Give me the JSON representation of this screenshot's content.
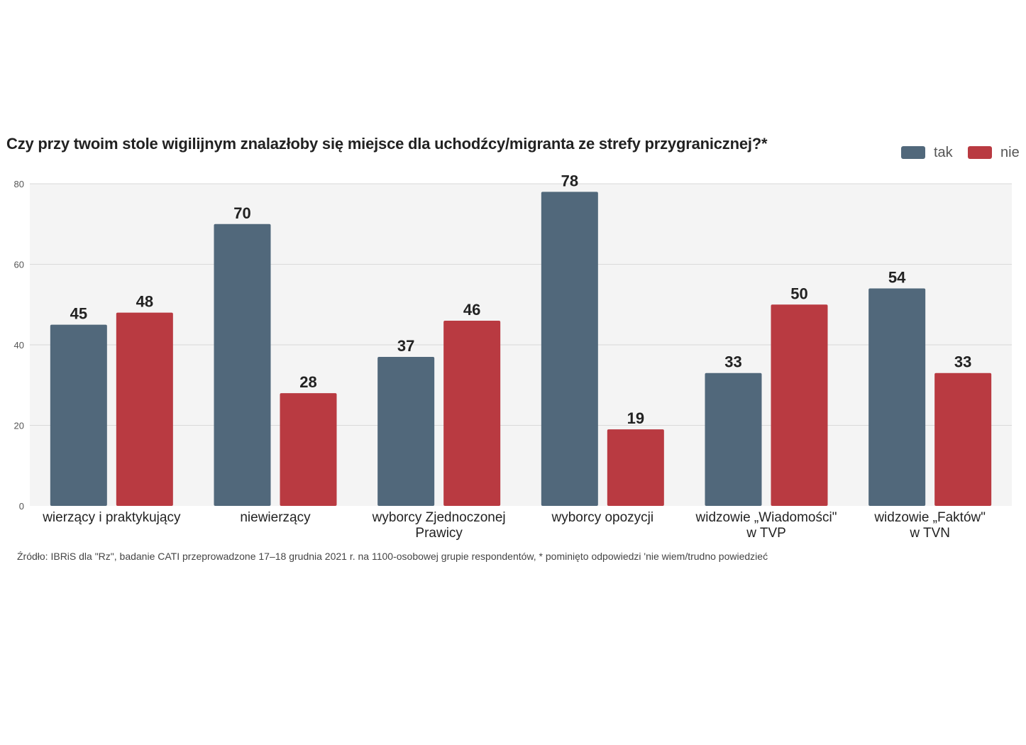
{
  "chart_data": {
    "type": "bar",
    "title": "Czy przy twoim stole wigilijnym znalazłoby się miejsce dla uchodźcy/migranta ze strefy przygranicznej?*",
    "categories": [
      [
        "wierzący i praktykujący"
      ],
      [
        "niewierzący"
      ],
      [
        "wyborcy Zjednoczonej",
        "Prawicy"
      ],
      [
        "wyborcy opozycji"
      ],
      [
        "widzowie „Wiadomości\"",
        "w TVP"
      ],
      [
        "widzowie „Faktów\"",
        "w TVN"
      ]
    ],
    "series": [
      {
        "name": "tak",
        "color": "#51687b",
        "values": [
          45,
          70,
          37,
          78,
          33,
          54
        ]
      },
      {
        "name": "nie",
        "color": "#b93a41",
        "values": [
          48,
          28,
          46,
          19,
          50,
          33
        ]
      }
    ],
    "ylim": [
      0,
      80
    ],
    "yticks": [
      0,
      20,
      40,
      60,
      80
    ],
    "xlabel": "",
    "ylabel": "",
    "grid": true,
    "legend": "top-right"
  },
  "source": "Źródło: IBRiS dla \"Rz\", badanie CATI przeprowadzone 17–18 grudnia 2021 r. na 1100-osobowej grupie respondentów, * pominięto odpowiedzi 'nie wiem/trudno powiedzieć"
}
